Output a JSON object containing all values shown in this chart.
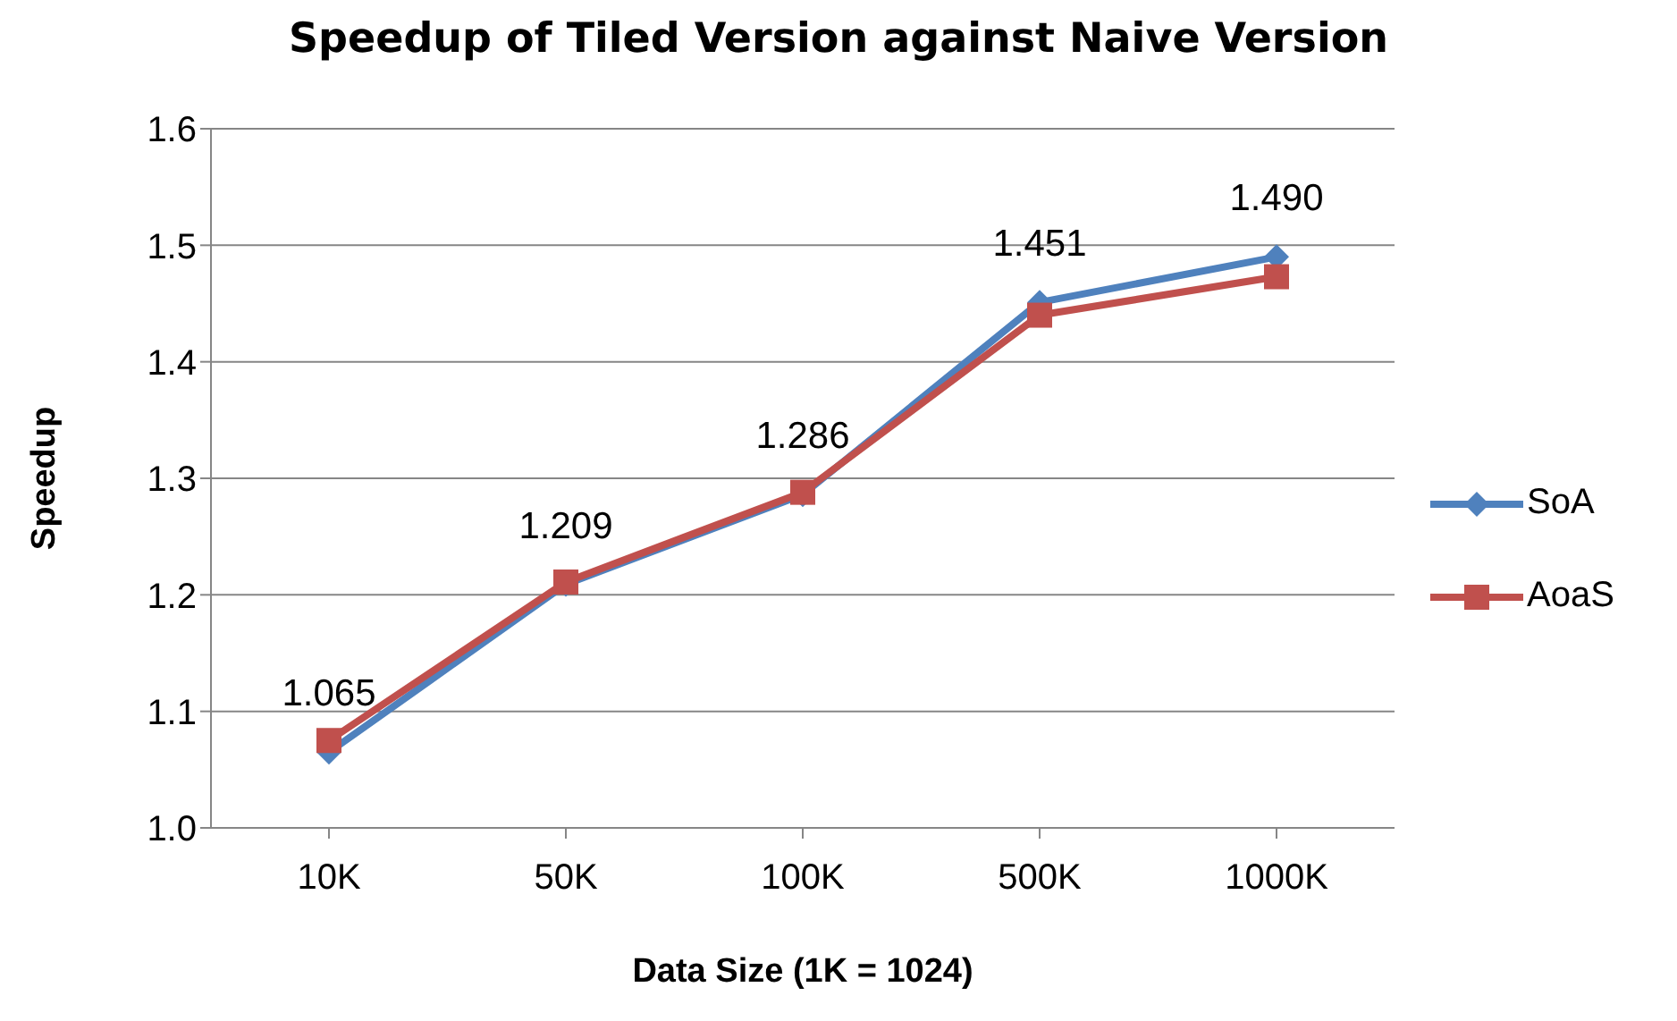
{
  "chart_data": {
    "type": "line",
    "title": "Speedup of Tiled Version against Naive Version",
    "xlabel": "Data Size (1K = 1024)",
    "ylabel": "Speedup",
    "categories": [
      "10K",
      "50K",
      "100K",
      "500K",
      "1000K"
    ],
    "series": [
      {
        "name": "SoA",
        "color": "#4f81bd",
        "marker": "diamond",
        "values": [
          1.065,
          1.209,
          1.286,
          1.451,
          1.49
        ],
        "value_labels": [
          "1.065",
          "1.209",
          "1.286",
          "1.451",
          "1.490"
        ]
      },
      {
        "name": "AoaS",
        "color": "#c0504d",
        "marker": "square",
        "values": [
          1.075,
          1.211,
          1.288,
          1.44,
          1.473
        ]
      }
    ],
    "ylim": [
      1.0,
      1.6
    ],
    "yticks": [
      {
        "value": 1,
        "label": "1.0"
      },
      1.1,
      1.2,
      1.3,
      1.4,
      1.5,
      1.6
    ],
    "grid": "y",
    "legend": "right",
    "line_style": "solid"
  }
}
